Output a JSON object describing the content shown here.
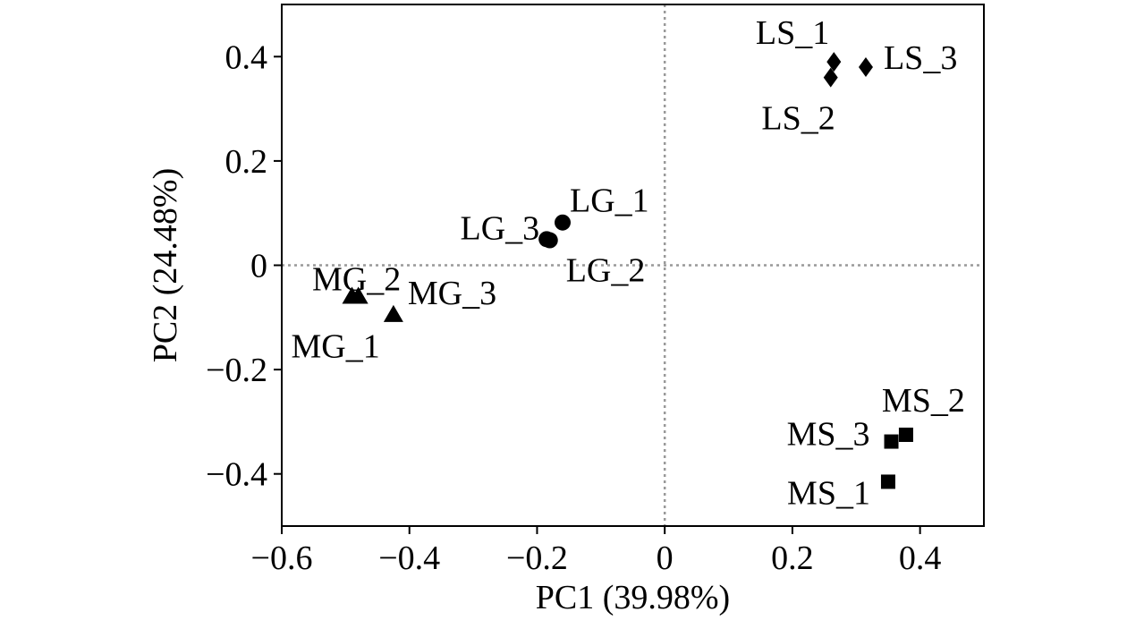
{
  "chart_data": {
    "type": "scatter",
    "title": "",
    "xlabel": "PC1 (39.98%)",
    "ylabel": "PC2 (24.48%)",
    "xlim": [
      -0.6,
      0.5
    ],
    "ylim": [
      -0.5,
      0.5
    ],
    "xticks": [
      -0.6,
      -0.4,
      -0.2,
      0,
      0.2,
      0.4
    ],
    "yticks": [
      -0.4,
      -0.2,
      0,
      0.2,
      0.4
    ],
    "xtick_labels": [
      "−0.6",
      "−0.4",
      "−0.2",
      "0",
      "0.2",
      "0.4"
    ],
    "ytick_labels": [
      "−0.4",
      "−0.2",
      "0",
      "0.2",
      "0.4"
    ],
    "reference_lines": {
      "x": 0,
      "y": 0,
      "style": "dotted",
      "color": "#999999"
    },
    "grid": false,
    "marker_color": "#000000",
    "points": [
      {
        "label": "LS_1",
        "x": 0.265,
        "y": 0.39,
        "marker": "diamond"
      },
      {
        "label": "LS_2",
        "x": 0.26,
        "y": 0.36,
        "marker": "diamond"
      },
      {
        "label": "LS_3",
        "x": 0.315,
        "y": 0.38,
        "marker": "diamond"
      },
      {
        "label": "LG_1",
        "x": -0.16,
        "y": 0.082,
        "marker": "circle"
      },
      {
        "label": "LG_2",
        "x": -0.18,
        "y": 0.048,
        "marker": "circle"
      },
      {
        "label": "LG_3",
        "x": -0.185,
        "y": 0.05,
        "marker": "circle"
      },
      {
        "label": "MG_1",
        "x": -0.49,
        "y": -0.06,
        "marker": "triangle"
      },
      {
        "label": "MG_2",
        "x": -0.48,
        "y": -0.06,
        "marker": "triangle"
      },
      {
        "label": "MG_3",
        "x": -0.425,
        "y": -0.095,
        "marker": "triangle"
      },
      {
        "label": "MS_1",
        "x": 0.35,
        "y": -0.415,
        "marker": "square"
      },
      {
        "label": "MS_2",
        "x": 0.378,
        "y": -0.325,
        "marker": "square"
      },
      {
        "label": "MS_3",
        "x": 0.355,
        "y": -0.338,
        "marker": "square"
      }
    ]
  }
}
